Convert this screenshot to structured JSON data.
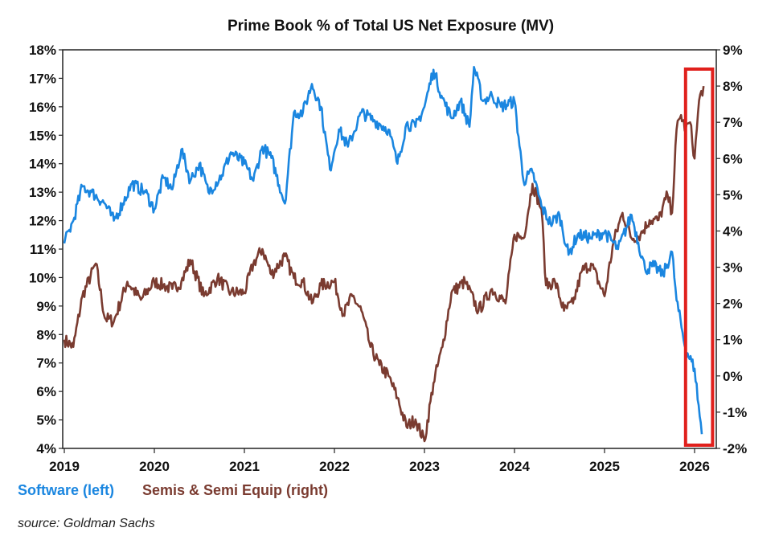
{
  "chart_data": {
    "type": "line",
    "title": "Prime Book % of Total US Net Exposure (MV)",
    "x_ticks": [
      "2019",
      "2020",
      "2021",
      "2022",
      "2023",
      "2024",
      "2025",
      "2026"
    ],
    "xlim": [
      2019.0,
      2026.25
    ],
    "y_left": {
      "ticks": [
        "18%",
        "17%",
        "16%",
        "15%",
        "14%",
        "13%",
        "12%",
        "11%",
        "10%",
        "9%",
        "8%",
        "7%",
        "6%",
        "5%",
        "4%"
      ],
      "ylim": [
        4,
        18
      ]
    },
    "y_right": {
      "ticks": [
        "9%",
        "8%",
        "7%",
        "6%",
        "5%",
        "4%",
        "3%",
        "2%",
        "1%",
        "0%",
        "-1%",
        "-2%"
      ],
      "ylim": [
        -2,
        9
      ]
    },
    "series": [
      {
        "name": "Software (left)",
        "axis": "left",
        "color": "#1a86e0",
        "x": [
          2019.0,
          2019.1,
          2019.2,
          2019.3,
          2019.45,
          2019.55,
          2019.65,
          2019.75,
          2019.9,
          2020.0,
          2020.1,
          2020.2,
          2020.3,
          2020.4,
          2020.5,
          2020.6,
          2020.75,
          2020.85,
          2021.0,
          2021.1,
          2021.2,
          2021.3,
          2021.45,
          2021.55,
          2021.65,
          2021.75,
          2021.85,
          2021.95,
          2022.05,
          2022.15,
          2022.3,
          2022.45,
          2022.6,
          2022.7,
          2022.8,
          2022.9,
          2023.0,
          2023.1,
          2023.2,
          2023.3,
          2023.4,
          2023.5,
          2023.55,
          2023.65,
          2023.75,
          2023.85,
          2024.0,
          2024.1,
          2024.2,
          2024.3,
          2024.4,
          2024.5,
          2024.6,
          2024.7,
          2024.85,
          2025.0,
          2025.15,
          2025.3,
          2025.45,
          2025.55,
          2025.65,
          2025.75,
          2025.8,
          2025.9,
          2026.0,
          2026.08
        ],
        "values": [
          11.2,
          12.0,
          13.2,
          13.0,
          12.6,
          12.0,
          12.6,
          13.3,
          13.0,
          12.4,
          13.5,
          13.1,
          14.5,
          13.4,
          14.0,
          13.0,
          13.6,
          14.4,
          14.0,
          13.4,
          14.6,
          14.2,
          12.6,
          15.8,
          15.8,
          16.8,
          16.0,
          13.8,
          15.2,
          14.6,
          15.8,
          15.5,
          15.2,
          14.0,
          15.4,
          15.3,
          16.0,
          17.3,
          16.3,
          15.6,
          16.2,
          15.3,
          17.4,
          16.2,
          16.4,
          16.0,
          16.2,
          13.4,
          13.7,
          12.5,
          11.9,
          12.2,
          10.8,
          11.5,
          11.4,
          11.6,
          11.0,
          12.2,
          10.3,
          10.4,
          10.1,
          10.9,
          9.2,
          7.5,
          6.8,
          4.5
        ]
      },
      {
        "name": "Semis & Semi Equip (right)",
        "axis": "right",
        "color": "#7a3b30",
        "x": [
          2019.0,
          2019.1,
          2019.2,
          2019.35,
          2019.45,
          2019.55,
          2019.7,
          2019.85,
          2020.0,
          2020.1,
          2020.2,
          2020.3,
          2020.4,
          2020.55,
          2020.7,
          2020.85,
          2021.0,
          2021.1,
          2021.2,
          2021.3,
          2021.45,
          2021.55,
          2021.65,
          2021.75,
          2021.85,
          2022.0,
          2022.1,
          2022.2,
          2022.3,
          2022.4,
          2022.5,
          2022.6,
          2022.7,
          2022.8,
          2022.9,
          2023.0,
          2023.1,
          2023.2,
          2023.3,
          2023.45,
          2023.6,
          2023.75,
          2023.9,
          2024.0,
          2024.1,
          2024.2,
          2024.3,
          2024.35,
          2024.45,
          2024.55,
          2024.65,
          2024.75,
          2024.85,
          2025.0,
          2025.1,
          2025.2,
          2025.3,
          2025.4,
          2025.5,
          2025.6,
          2025.7,
          2025.75,
          2025.8,
          2025.85,
          2025.9,
          2025.95,
          2026.0,
          2026.05,
          2026.1
        ],
        "values": [
          1.0,
          0.8,
          2.2,
          3.1,
          1.6,
          1.5,
          2.6,
          2.1,
          2.6,
          2.5,
          2.4,
          2.6,
          3.2,
          2.2,
          2.7,
          2.3,
          2.3,
          3.1,
          3.5,
          2.8,
          3.3,
          2.7,
          2.6,
          2.0,
          2.5,
          2.6,
          1.7,
          2.2,
          1.8,
          0.8,
          0.3,
          0.0,
          -0.6,
          -1.4,
          -1.2,
          -1.8,
          -0.2,
          0.8,
          2.3,
          2.6,
          1.8,
          2.4,
          2.0,
          3.9,
          3.8,
          5.3,
          4.6,
          2.5,
          2.6,
          1.8,
          2.0,
          2.9,
          3.1,
          2.2,
          3.7,
          4.5,
          3.8,
          3.9,
          4.3,
          4.3,
          5.0,
          4.5,
          6.8,
          7.2,
          6.8,
          7.0,
          6.0,
          7.6,
          8.0
        ]
      }
    ],
    "highlight": {
      "x_range": [
        2025.9,
        2026.2
      ],
      "color": "#e0201c"
    },
    "legend": [
      {
        "label": "Software (left)",
        "color": "#1a86e0"
      },
      {
        "label": "Semis & Semi Equip (right)",
        "color": "#7a3b30"
      }
    ],
    "source": "source: Goldman Sachs"
  }
}
